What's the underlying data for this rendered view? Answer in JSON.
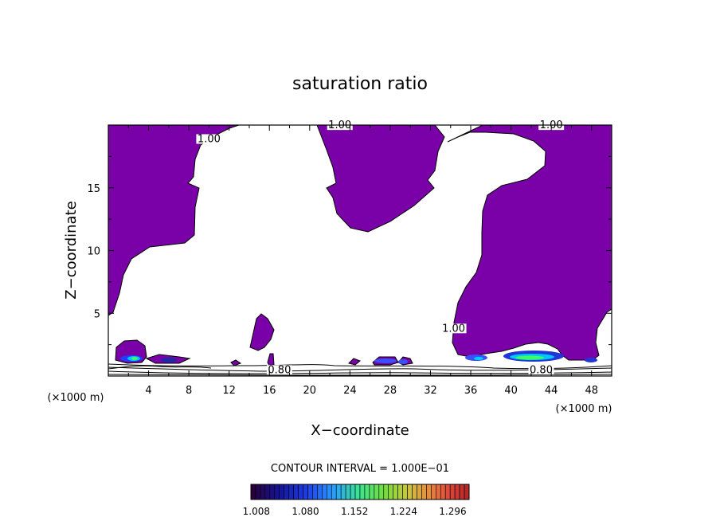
{
  "chart_data": {
    "type": "contour",
    "title": "saturation ratio",
    "xlabel": "X−coordinate",
    "ylabel": "Z−coordinate",
    "x_unit": "(×1000 m)",
    "z_unit": "(×1000 m)",
    "xlim": [
      0,
      50
    ],
    "ylim": [
      0,
      20
    ],
    "x_ticks": [
      "4",
      "8",
      "12",
      "16",
      "20",
      "24",
      "28",
      "32",
      "36",
      "40",
      "44",
      "48"
    ],
    "x_tick_values": [
      4,
      8,
      12,
      16,
      20,
      24,
      28,
      32,
      36,
      40,
      44,
      48
    ],
    "y_ticks": [
      "5",
      "10",
      "15"
    ],
    "y_tick_values": [
      5,
      10,
      15
    ],
    "contour_interval_text": "CONTOUR INTERVAL = 1.000E−01",
    "contour_labels": [
      {
        "text": "1.00",
        "x": 10.0,
        "z": 18.7
      },
      {
        "text": "1.00",
        "x": 23.0,
        "z": 19.8
      },
      {
        "text": "1.00",
        "x": 44.0,
        "z": 19.8
      },
      {
        "text": "1.00",
        "x": 34.3,
        "z": 3.6
      },
      {
        "text": "0.80",
        "x": 17.0,
        "z": 0.3
      },
      {
        "text": "0.80",
        "x": 43.0,
        "z": 0.3
      }
    ],
    "colorbar": {
      "colormap": "rainbow",
      "tick_labels": [
        "1.008",
        "1.080",
        "1.152",
        "1.224",
        "1.296"
      ],
      "tick_values": [
        1.008,
        1.08,
        1.152,
        1.224,
        1.296
      ],
      "range": [
        1.0,
        1.32
      ]
    },
    "supersaturated_fill_color": "#7a00a8",
    "contour_line_color": "#000000",
    "grid": false
  }
}
